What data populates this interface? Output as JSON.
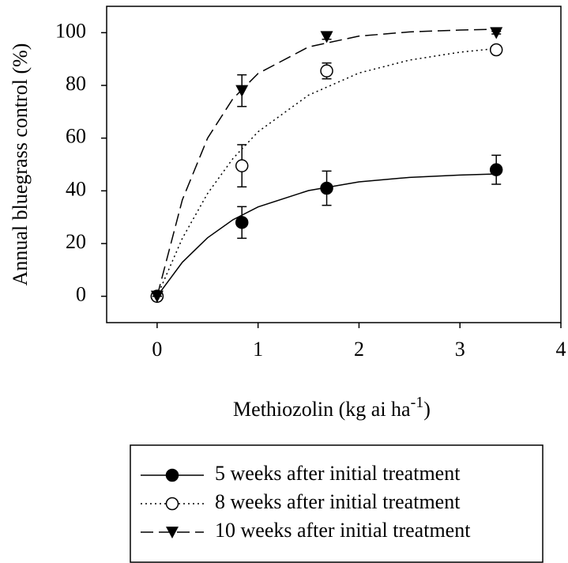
{
  "chart_data": {
    "type": "scatter",
    "x_label": "Methiozolin (kg ai ha",
    "x_label_sup": "-1",
    "x_label_end": ")",
    "y_label": "Annual bluegrass control (%)",
    "x": [
      0,
      0.84,
      1.68,
      3.36
    ],
    "fit_x": [
      0,
      0.25,
      0.5,
      0.75,
      1,
      1.5,
      2,
      2.5,
      3,
      3.36
    ],
    "series": [
      {
        "name": "5 weeks after initial treatment",
        "color": "#000000",
        "marker": "circle-filled",
        "dash": "solid",
        "values": [
          0,
          28,
          41,
          48
        ],
        "errors": [
          0,
          6,
          6.5,
          5.5
        ],
        "fit_values": [
          0,
          12.9,
          22.2,
          29.0,
          33.9,
          40.1,
          43.4,
          45.1,
          46.0,
          46.4
        ]
      },
      {
        "name": "8 weeks after initial treatment",
        "color": "#000000",
        "marker": "circle-open",
        "dash": "dotted",
        "values": [
          0,
          49.5,
          85.5,
          93.5
        ],
        "errors": [
          0,
          8,
          3,
          1.5
        ],
        "fit_values": [
          0,
          22.0,
          39.0,
          52.2,
          62.4,
          76.3,
          84.7,
          89.6,
          92.6,
          94.0
        ]
      },
      {
        "name": "10 weeks after initial treatment",
        "color": "#000000",
        "marker": "triangle-down",
        "dash": "dashed",
        "values": [
          0,
          78,
          98.5,
          100
        ],
        "errors": [
          0,
          6,
          1,
          0.5
        ],
        "fit_values": [
          0,
          36.6,
          60.0,
          74.9,
          84.5,
          94.6,
          98.7,
          100.3,
          101.0,
          101.3
        ]
      }
    ],
    "xlim": [
      -0.5,
      4
    ],
    "xticks": [
      0,
      1,
      2,
      3,
      4
    ],
    "ylim": [
      -10,
      110
    ],
    "yticks": [
      0,
      20,
      40,
      60,
      80,
      100
    ],
    "grid": false,
    "legend": "bottom"
  }
}
